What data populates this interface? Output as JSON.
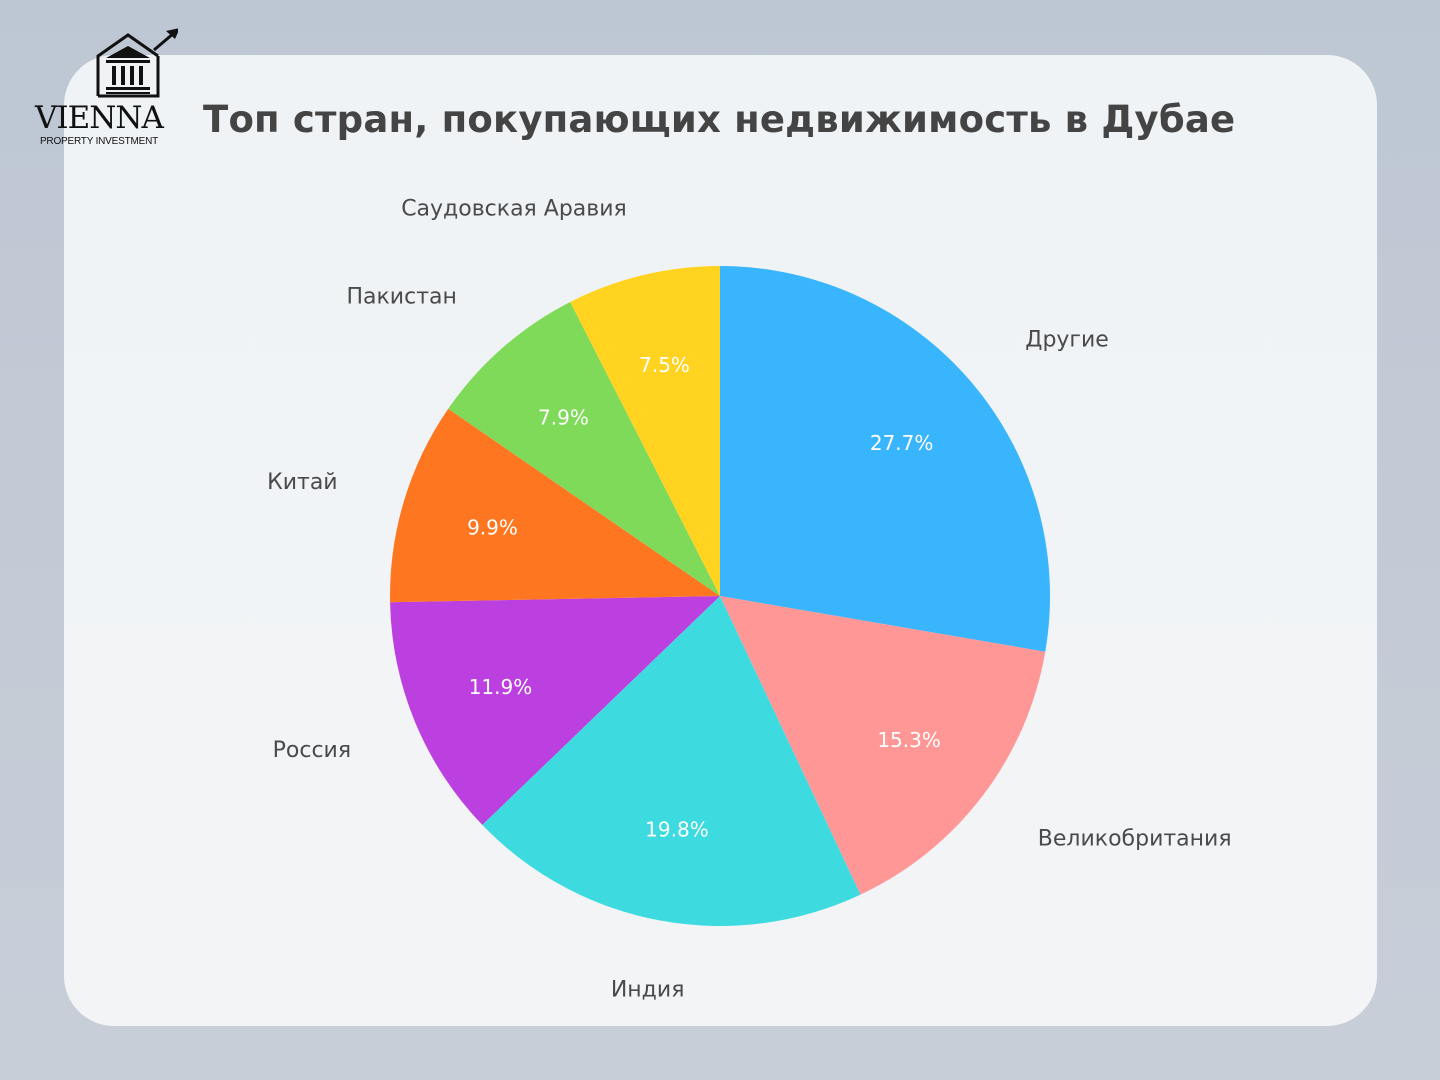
{
  "logo": {
    "brand": "VIENNA",
    "tagline": "PROPERTY INVESTMENT",
    "icon": "building-with-rising-arrow-icon"
  },
  "header": {
    "title": "Топ стран, покупающих недвижимость в Дубае"
  },
  "colors": {
    "background": "#c2cad5",
    "card": "#f1f3f6",
    "title": "#444444",
    "label": "#4a4a4a"
  },
  "chart_data": {
    "type": "pie",
    "title": "Топ стран, покупающих недвижимость в Дубае",
    "start_angle": "12 o'clock",
    "direction": "clockwise",
    "unit": "%",
    "categories": [
      "Другие",
      "Великобритания",
      "Индия",
      "Россия",
      "Китай",
      "Пакистан",
      "Саудовская Аравия"
    ],
    "values": [
      27.7,
      15.3,
      19.8,
      11.9,
      9.9,
      7.9,
      7.5
    ],
    "value_labels": [
      "27.7%",
      "15.3%",
      "19.8%",
      "11.9%",
      "9.9%",
      "7.9%",
      "7.5%"
    ],
    "colors": [
      "#38b5fd",
      "#ff9797",
      "#3ddbe0",
      "#bb40df",
      "#ff7621",
      "#80da59",
      "#ffd320"
    ],
    "legend": "none (labels outside slices)"
  }
}
